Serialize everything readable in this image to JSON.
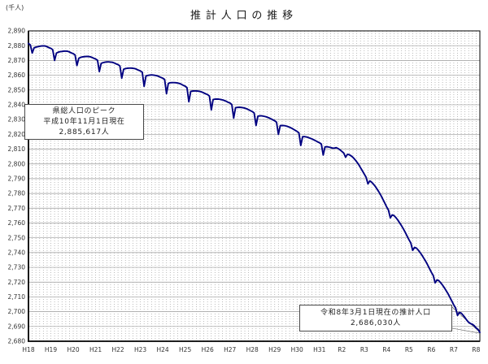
{
  "chart": {
    "title": "推計人口の推移",
    "unit_label": "(千人)",
    "annotations": {
      "peak": {
        "line1": "県総人口のピーク",
        "line2": "平成10年11月1日現在",
        "line3": "2,885,617人"
      },
      "estimate": {
        "line1": "令和8年3月1日現在の推計人口",
        "line2": "2,686,030人"
      }
    }
  },
  "chart_data": {
    "type": "line",
    "title": "推計人口の推移",
    "ylabel": "(千人)",
    "ylim": [
      2680,
      2890
    ],
    "y_tick_step": 10,
    "grid": {
      "horizontal": "solid",
      "vertical": "dotted-bimonthly"
    },
    "line_color": "#000080",
    "frequency": "monthly",
    "start": "2006-01",
    "end": "2026-03",
    "x_labels": [
      "H18",
      "H19",
      "H20",
      "H21",
      "H22",
      "H23",
      "H24",
      "H25",
      "H26",
      "H27",
      "H28",
      "H29",
      "H30",
      "H31",
      "R2",
      "R3",
      "R4",
      "R5",
      "R6",
      "R7",
      "R8"
    ],
    "x_label_month_interval": 12,
    "series": [
      {
        "name": "推計人口（千人）",
        "values": [
          2881.5,
          2880.5,
          2875,
          2878.5,
          2879,
          2879.3,
          2879.6,
          2879.8,
          2879.9,
          2879.8,
          2879.3,
          2878.6,
          2878.2,
          2877.3,
          2870,
          2875,
          2875.6,
          2875.9,
          2876.1,
          2876.3,
          2876.3,
          2876.2,
          2875.7,
          2875.1,
          2874.6,
          2873.7,
          2866.5,
          2871.5,
          2872.1,
          2872.4,
          2872.6,
          2872.7,
          2872.7,
          2872.5,
          2872.1,
          2871.5,
          2871,
          2870.1,
          2862.5,
          2868,
          2868.5,
          2868.8,
          2869,
          2869,
          2868.9,
          2868.7,
          2868.3,
          2867.7,
          2867.2,
          2866.3,
          2858,
          2864,
          2864.5,
          2864.7,
          2864.8,
          2864.8,
          2864.7,
          2864.5,
          2864,
          2863.4,
          2862.9,
          2862,
          2852.5,
          2859.5,
          2859.9,
          2860.1,
          2860.2,
          2860.1,
          2859.9,
          2859.6,
          2859.1,
          2858.5,
          2858,
          2857.1,
          2847.5,
          2854.5,
          2854.9,
          2855,
          2855,
          2854.9,
          2854.7,
          2854.4,
          2853.8,
          2853.1,
          2852.6,
          2851.6,
          2842,
          2849,
          2849.3,
          2849.4,
          2849.4,
          2849.2,
          2849,
          2848.6,
          2848,
          2847.4,
          2846.9,
          2845.9,
          2836.5,
          2843.5,
          2843.8,
          2843.9,
          2843.8,
          2843.6,
          2843.3,
          2842.9,
          2842.4,
          2841.7,
          2841.2,
          2840.2,
          2831,
          2838,
          2838.2,
          2838.3,
          2838.2,
          2838,
          2837.7,
          2837.3,
          2836.7,
          2836,
          2835.4,
          2834.4,
          2826,
          2832.3,
          2832.5,
          2832.5,
          2832.3,
          2832,
          2831.6,
          2831.1,
          2830.5,
          2829.8,
          2829.2,
          2828.2,
          2820,
          2825.9,
          2826,
          2825.9,
          2825.7,
          2825.3,
          2824.8,
          2824.2,
          2823.5,
          2822.7,
          2822,
          2821,
          2812.5,
          2818.4,
          2818.4,
          2818.2,
          2817.9,
          2817.4,
          2816.9,
          2816.3,
          2815.6,
          2814.9,
          2814.3,
          2813.4,
          2806,
          2811.5,
          2811.6,
          2811.4,
          2811.1,
          2810.7,
          2810.7,
          2811,
          2810.4,
          2809.5,
          2808.5,
          2807.4,
          2804.5,
          2806.5,
          2806.2,
          2805.4,
          2804.4,
          2803,
          2801.4,
          2799.6,
          2797.5,
          2795.4,
          2793.2,
          2791,
          2786.5,
          2788.5,
          2787.6,
          2786.2,
          2784.6,
          2782.7,
          2780.7,
          2778.5,
          2776.1,
          2773.6,
          2771,
          2768.8,
          2763.5,
          2765.5,
          2765,
          2763.6,
          2762,
          2760.1,
          2758.1,
          2756,
          2753.6,
          2751.1,
          2748.6,
          2746.5,
          2741.5,
          2743.5,
          2743,
          2741.6,
          2740,
          2738.1,
          2736.1,
          2734,
          2731.6,
          2729.1,
          2726.6,
          2724.5,
          2719.5,
          2721.5,
          2721,
          2719.6,
          2718,
          2716.1,
          2714.1,
          2712,
          2709.6,
          2707.1,
          2704.6,
          2702.5,
          2697.5,
          2699.5,
          2699,
          2697.6,
          2696,
          2694.3,
          2692.8,
          2692,
          2691.5,
          2690.5,
          2689,
          2688,
          2686
        ]
      }
    ],
    "annotations": [
      {
        "text": [
          "県総人口のピーク",
          "平成10年11月1日現在",
          "2,885,617人"
        ],
        "position": "upper-left"
      },
      {
        "text": [
          "令和8年3月1日現在の推計人口",
          "2,686,030人"
        ],
        "position": "lower-right",
        "points_to": "last-value"
      }
    ]
  }
}
